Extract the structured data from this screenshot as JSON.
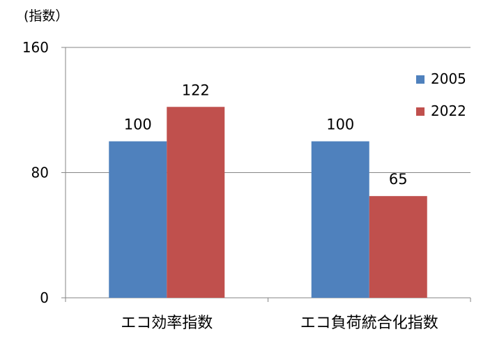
{
  "chart_data": {
    "type": "bar",
    "y_unit_label": "(指数）",
    "categories": [
      "エコ効率指数",
      "エコ負荷統合化指数"
    ],
    "series": [
      {
        "name": "2005",
        "values": [
          100,
          100
        ],
        "color": "#4F81BD"
      },
      {
        "name": "2022",
        "values": [
          122,
          65
        ],
        "color": "#C0504D"
      }
    ],
    "ylim": [
      0,
      160
    ],
    "yticks": [
      0,
      80,
      160
    ],
    "grid": true,
    "legend": "top-right",
    "data_labels": true
  }
}
